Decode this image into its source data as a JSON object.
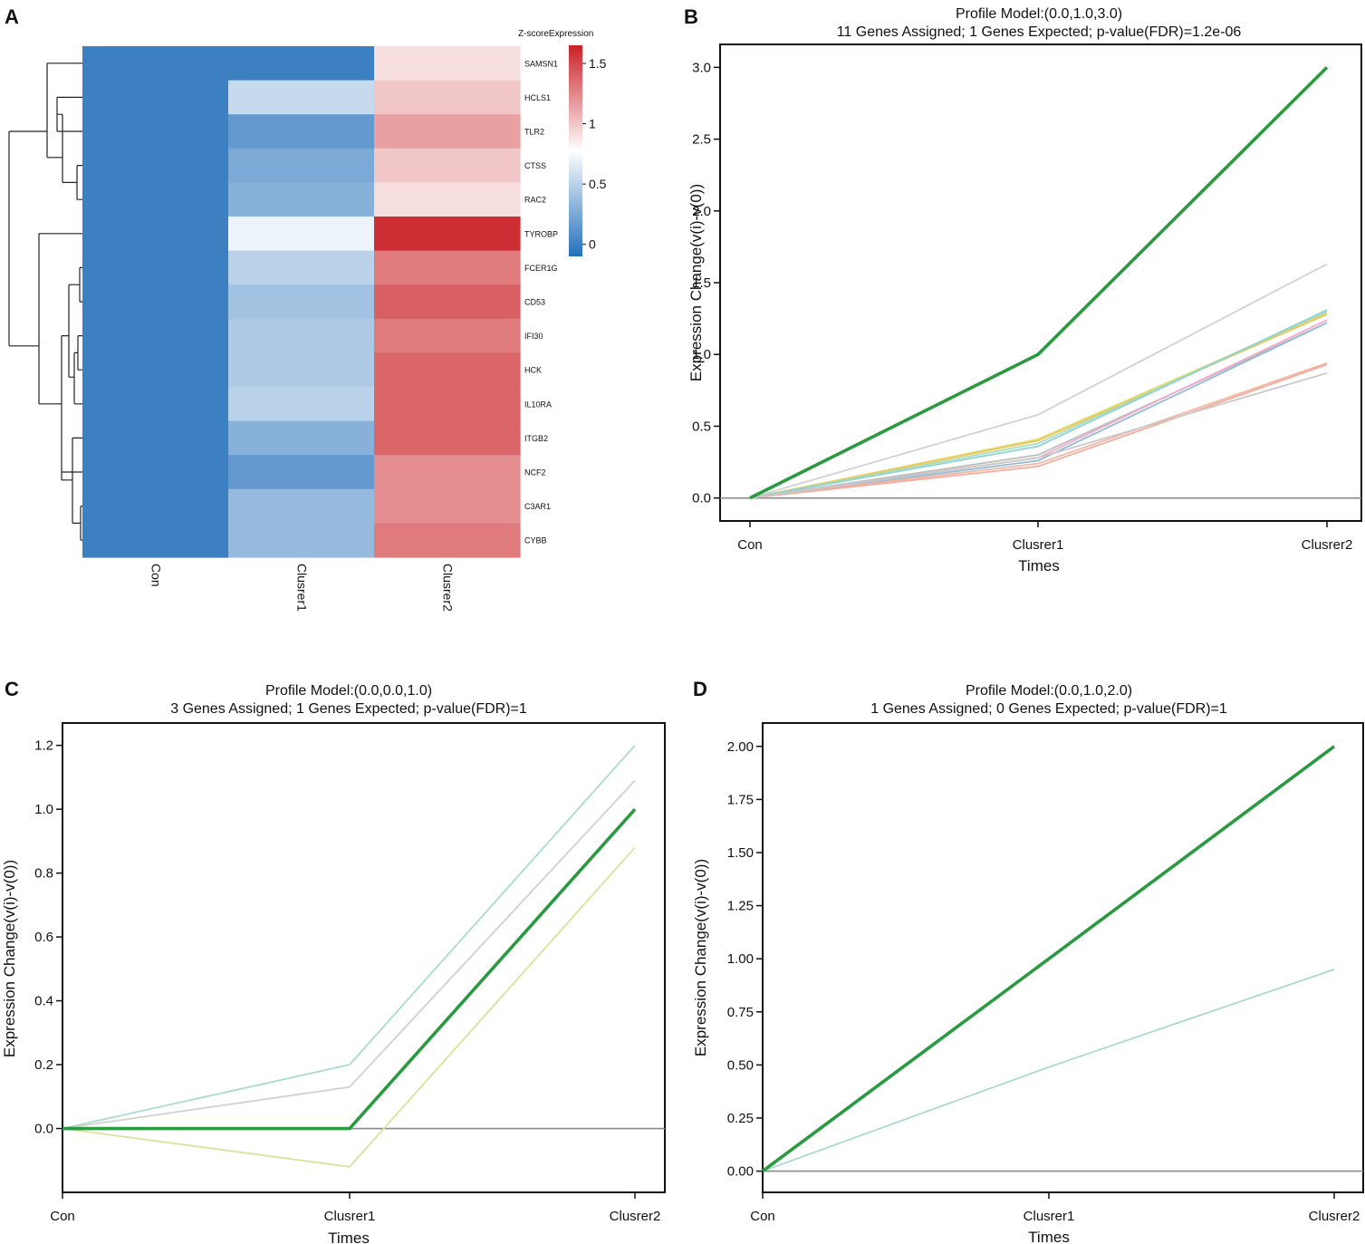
{
  "panels": {
    "A": {
      "label": "A",
      "chart_data": {
        "type": "heatmap",
        "rows": [
          "SAMSN1",
          "HCLS1",
          "TLR2",
          "CTSS",
          "RAC2",
          "TYROBP",
          "FCER1G",
          "CD53",
          "IFI30",
          "HCK",
          "IL10RA",
          "ITGB2",
          "NCF2",
          "C3AR1",
          "CYBB"
        ],
        "columns": [
          "Con",
          "Clusrer1",
          "Clusrer2"
        ],
        "values": [
          [
            0.0,
            0.0,
            0.9
          ],
          [
            0.0,
            0.55,
            1.0
          ],
          [
            0.0,
            0.15,
            1.15
          ],
          [
            0.0,
            0.25,
            1.0
          ],
          [
            0.0,
            0.3,
            0.9
          ],
          [
            0.0,
            0.7,
            1.6
          ],
          [
            0.0,
            0.5,
            1.3
          ],
          [
            0.0,
            0.4,
            1.4
          ],
          [
            0.0,
            0.45,
            1.3
          ],
          [
            0.0,
            0.45,
            1.38
          ],
          [
            0.0,
            0.5,
            1.38
          ],
          [
            0.0,
            0.3,
            1.38
          ],
          [
            0.0,
            0.15,
            1.22
          ],
          [
            0.0,
            0.35,
            1.22
          ],
          [
            0.0,
            0.35,
            1.3
          ]
        ],
        "legend_title": "Z-scoreExpression",
        "legend_ticks": [
          "0",
          "0.5",
          "1",
          "1.5"
        ],
        "legend_tick_values": [
          0,
          0.5,
          1,
          1.5
        ],
        "value_range": [
          -0.1,
          1.65
        ],
        "colors": {
          "low": "#2470ba",
          "mid": "#ffffff",
          "high": "#c92127"
        },
        "row_dendrogram": true
      }
    },
    "B": {
      "label": "B",
      "chart_data": {
        "type": "line",
        "title": "Profile Model:(0.0,1.0,3.0)",
        "subtitle": "11 Genes Assigned; 1 Genes Expected; p-value(FDR)=1.2e-06",
        "xlabel": "Times",
        "ylabel": "Expression Change(v(i)-v(0))",
        "categories": [
          "Con",
          "Clusrer1",
          "Clusrer2"
        ],
        "ylim": [
          -0.16,
          3.16
        ],
        "yticks": [
          0.0,
          0.5,
          1.0,
          1.5,
          2.0,
          2.5,
          3.0
        ],
        "ytick_labels": [
          "0.0",
          "0.5",
          "1.0",
          "1.5",
          "2.0",
          "2.5",
          "3.0"
        ],
        "zero_line": true,
        "model": {
          "name": "Profile Model",
          "values": [
            0.0,
            1.0,
            3.0
          ],
          "color": "#2a9a40"
        },
        "series": [
          {
            "values": [
              0,
              0.58,
              1.63
            ],
            "color": "#d2d2d2"
          },
          {
            "values": [
              0,
              0.41,
              1.29
            ],
            "color": "#dde373"
          },
          {
            "values": [
              0,
              0.4,
              1.28
            ],
            "color": "#f0c45a"
          },
          {
            "values": [
              0,
              0.38,
              1.3
            ],
            "color": "#a7dcc0"
          },
          {
            "values": [
              0,
              0.36,
              1.31
            ],
            "color": "#8fd3d3"
          },
          {
            "values": [
              0,
              0.3,
              1.22
            ],
            "color": "#bdbdbd"
          },
          {
            "values": [
              0,
              0.28,
              1.24
            ],
            "color": "#f2a8c8"
          },
          {
            "values": [
              0,
              0.26,
              1.22
            ],
            "color": "#92bcd8"
          },
          {
            "values": [
              0,
              0.24,
              0.94
            ],
            "color": "#f3b7a4"
          },
          {
            "values": [
              0,
              0.22,
              0.93
            ],
            "color": "#f5ab9e"
          },
          {
            "values": [
              0,
              0.28,
              0.87
            ],
            "color": "#c8c8c8"
          }
        ]
      }
    },
    "C": {
      "label": "C",
      "chart_data": {
        "type": "line",
        "title": "Profile Model:(0.0,0.0,1.0)",
        "subtitle": "3 Genes Assigned; 1 Genes Expected; p-value(FDR)=1",
        "xlabel": "Times",
        "ylabel": "Expression Change(v(i)-v(0))",
        "categories": [
          "Con",
          "Clusrer1",
          "Clusrer2"
        ],
        "ylim": [
          -0.2,
          1.27
        ],
        "yticks": [
          0.0,
          0.2,
          0.4,
          0.6,
          0.8,
          1.0,
          1.2
        ],
        "ytick_labels": [
          "0.0",
          "0.2",
          "0.4",
          "0.6",
          "0.8",
          "1.0",
          "1.2"
        ],
        "zero_line": true,
        "model": {
          "name": "Profile Model",
          "values": [
            0.0,
            0.0,
            1.0
          ],
          "color": "#2a9a40"
        },
        "series": [
          {
            "values": [
              0,
              0.2,
              1.2
            ],
            "color": "#a8dcc6"
          },
          {
            "values": [
              0,
              0.13,
              1.09
            ],
            "color": "#d0d0d0"
          },
          {
            "values": [
              0,
              -0.12,
              0.88
            ],
            "color": "#d6e39a"
          }
        ]
      }
    },
    "D": {
      "label": "D",
      "chart_data": {
        "type": "line",
        "title": "Profile Model:(0.0,1.0,2.0)",
        "subtitle": "1 Genes Assigned; 0 Genes Expected; p-value(FDR)=1",
        "xlabel": "Times",
        "ylabel": "Expression Change(v(i)-v(0))",
        "categories": [
          "Con",
          "Clusrer1",
          "Clusrer2"
        ],
        "ylim": [
          -0.1,
          2.11
        ],
        "yticks": [
          0.0,
          0.25,
          0.5,
          0.75,
          1.0,
          1.25,
          1.5,
          1.75,
          2.0
        ],
        "ytick_labels": [
          "0.00",
          "0.25",
          "0.50",
          "0.75",
          "1.00",
          "1.25",
          "1.50",
          "1.75",
          "2.00"
        ],
        "zero_line": true,
        "model": {
          "name": "Profile Model",
          "values": [
            0.0,
            1.0,
            2.0
          ],
          "color": "#2a9a40"
        },
        "series": [
          {
            "values": [
              0,
              0.49,
              0.95
            ],
            "color": "#a8dcc6"
          }
        ]
      }
    }
  }
}
